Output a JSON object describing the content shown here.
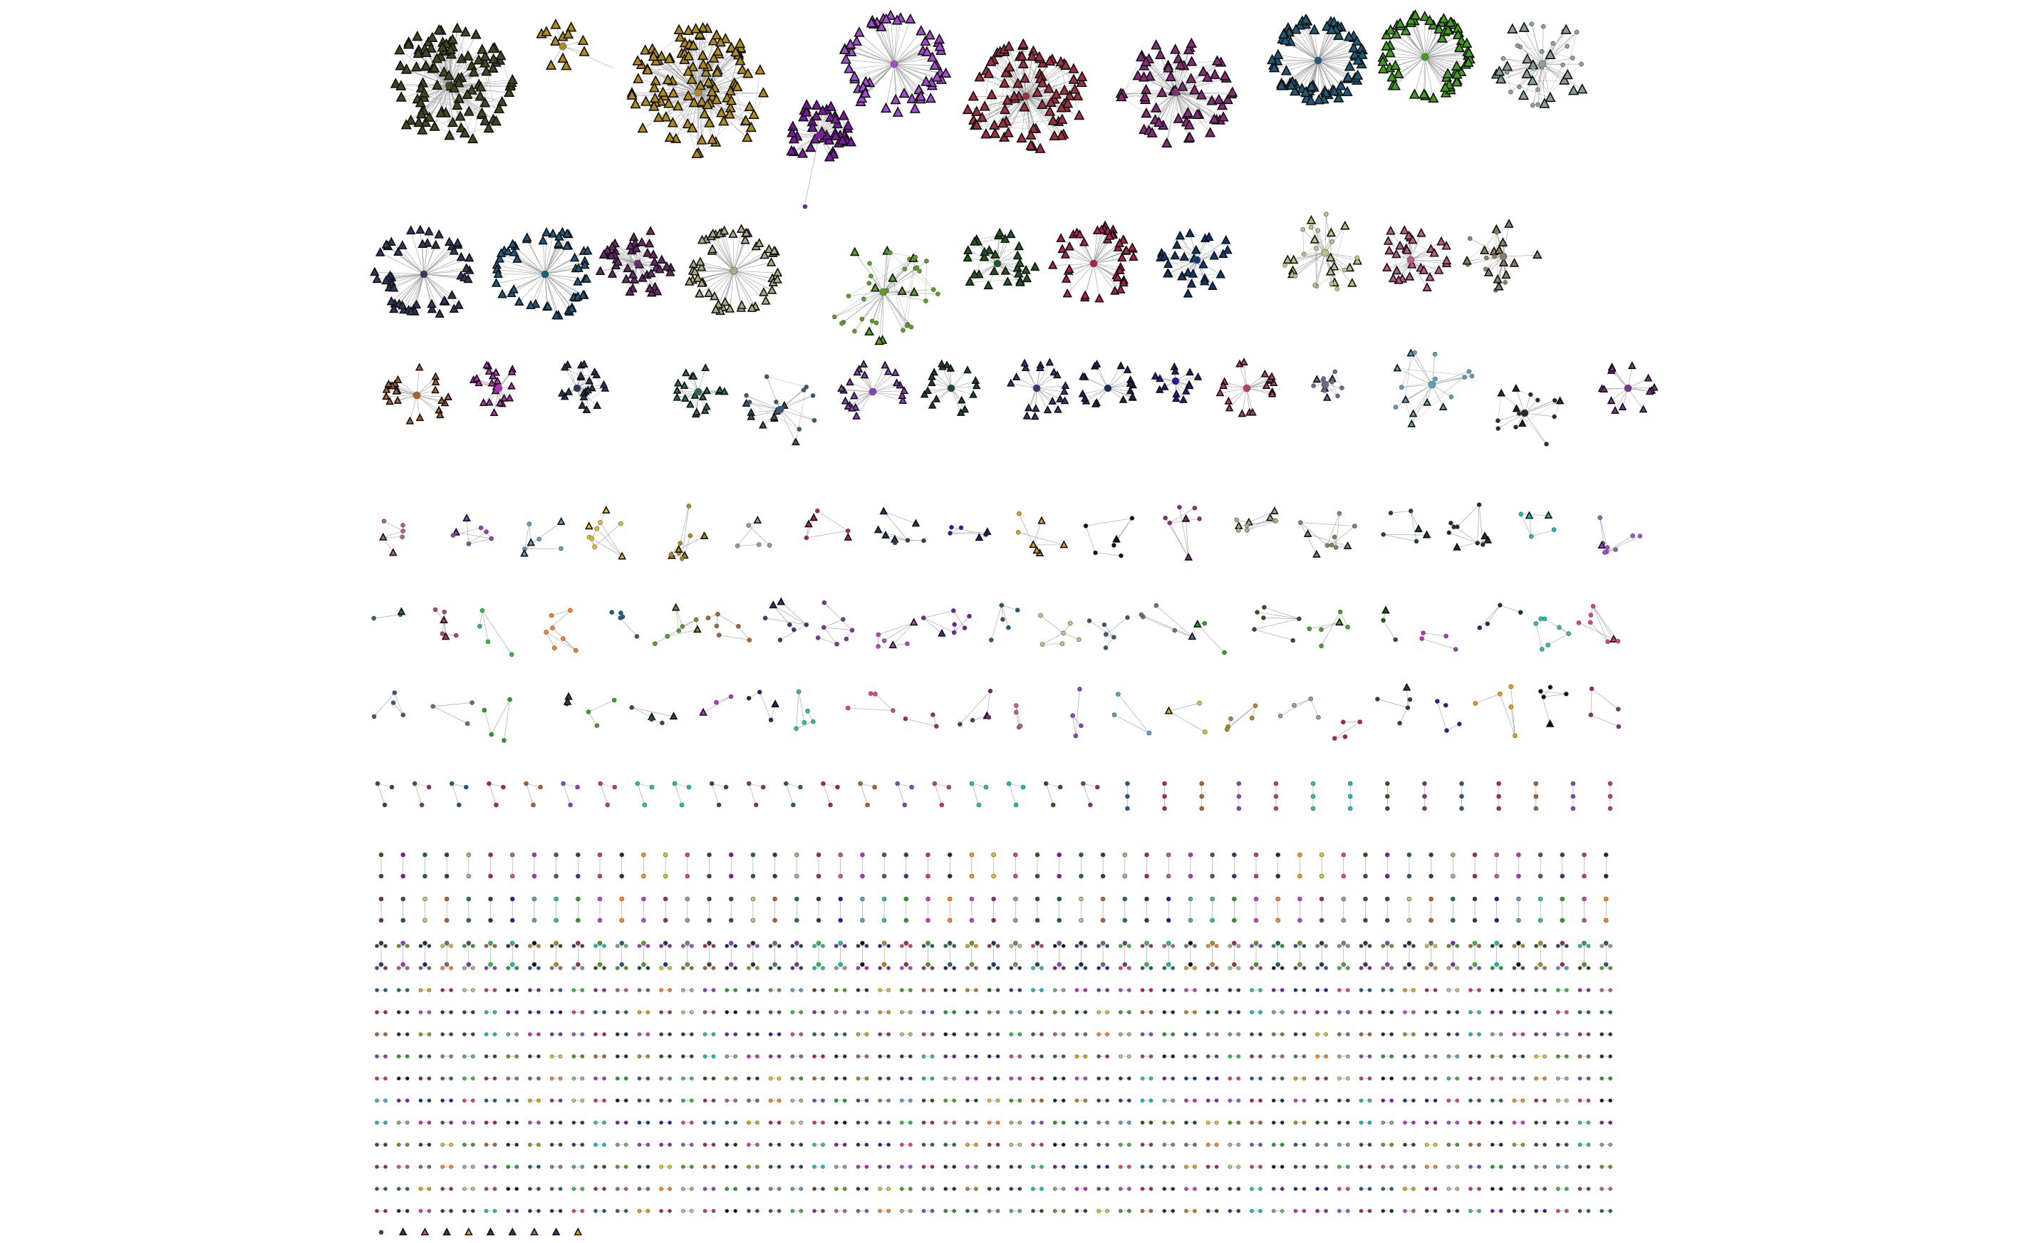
{
  "diagram": {
    "type": "network-components",
    "edge_color": "#9e9e9e",
    "node_outline": "#111111",
    "shapes": {
      "hub": "circle",
      "leaf": "triangle",
      "small": "dot"
    },
    "palette": [
      "#3d4a1e",
      "#b08a1a",
      "#a24ccf",
      "#7a1aa0",
      "#a03040",
      "#8a2a7a",
      "#1f5a7a",
      "#3fa01f",
      "#8aa09a",
      "#30395e",
      "#1e5a86",
      "#6a2a6a",
      "#b0ab80",
      "#5aa01f",
      "#1f5a1f",
      "#b0204a",
      "#0e3a7a",
      "#c0c080",
      "#c05a8a",
      "#8a8060",
      "#b0602a",
      "#c02ac0",
      "#2a3a5a",
      "#2a6a5a",
      "#3a5a7a",
      "#8a40c0",
      "#1a4a2a",
      "#303a7a",
      "#1a2a5a",
      "#2a1a9a",
      "#c03a6a",
      "#6a6a8a",
      "#5aa0c0",
      "#2a2a2a",
      "#80309a",
      "#2ac0a0",
      "#e0a010",
      "#30c040",
      "#20a020",
      "#e0c020",
      "#10c0c0",
      "#c040c0",
      "#e04080",
      "#101010",
      "#ff8020"
    ]
  },
  "components": {
    "row1": [
      {
        "hub": 0,
        "leaves": 110,
        "style": "dense"
      },
      {
        "hub": 1,
        "leaves": 12,
        "style": "small"
      },
      {
        "hub": 1,
        "leaves": 120,
        "style": "dense"
      },
      {
        "hub": 2,
        "leaves": 60,
        "style": "ring"
      },
      {
        "hub": 3,
        "leaves": 45,
        "style": "dense"
      },
      {
        "hub": 4,
        "leaves": 90,
        "style": "dense"
      },
      {
        "hub": 5,
        "leaves": 70,
        "style": "dense"
      },
      {
        "hub": 6,
        "leaves": 80,
        "style": "ring"
      },
      {
        "hub": 7,
        "leaves": 70,
        "style": "ring"
      },
      {
        "hub": 8,
        "leaves": 40,
        "style": "mesh"
      }
    ],
    "row2": [
      {
        "hub": 9,
        "leaves": 55,
        "style": "ring"
      },
      {
        "hub": 10,
        "leaves": 55,
        "style": "ring"
      },
      {
        "hub": 11,
        "leaves": 45,
        "style": "dense"
      },
      {
        "hub": 12,
        "leaves": 55,
        "style": "ring"
      },
      {
        "hub": 13,
        "leaves": 40,
        "style": "mesh"
      },
      {
        "hub": 14,
        "leaves": 30,
        "style": "dense"
      },
      {
        "hub": 15,
        "leaves": 45,
        "style": "ring"
      },
      {
        "hub": 16,
        "leaves": 30,
        "style": "dense"
      },
      {
        "hub": 17,
        "leaves": 30,
        "style": "mesh"
      },
      {
        "hub": 18,
        "leaves": 30,
        "style": "dense"
      },
      {
        "hub": 19,
        "leaves": 25,
        "style": "mesh"
      }
    ],
    "row3": [
      {
        "hub": 20,
        "leaves": 22,
        "style": "ring"
      },
      {
        "hub": 21,
        "leaves": 22,
        "style": "dense"
      },
      {
        "hub": 22,
        "leaves": 22,
        "style": "dense"
      },
      {
        "hub": 23,
        "leaves": 20,
        "style": "dense"
      },
      {
        "hub": 24,
        "leaves": 18,
        "style": "mesh"
      },
      {
        "hub": 25,
        "leaves": 22,
        "style": "ring"
      },
      {
        "hub": 26,
        "leaves": 18,
        "style": "ring"
      },
      {
        "hub": 27,
        "leaves": 20,
        "style": "ring"
      },
      {
        "hub": 28,
        "leaves": 18,
        "style": "ring"
      },
      {
        "hub": 29,
        "leaves": 14,
        "style": "dense"
      },
      {
        "hub": 30,
        "leaves": 18,
        "style": "ring"
      },
      {
        "hub": 31,
        "leaves": 12,
        "style": "mesh"
      },
      {
        "hub": 32,
        "leaves": 16,
        "style": "mesh"
      },
      {
        "hub": 33,
        "leaves": 14,
        "style": "mesh"
      },
      {
        "hub": 34,
        "leaves": 14,
        "style": "ring"
      }
    ],
    "row4_count": 18,
    "row5_count": 23,
    "row6_count": 24,
    "row7_count": 34,
    "pair_rows": 3,
    "pair_cols": 57,
    "chain_rows": 13,
    "chain_cols": 57,
    "tail_count": 10
  }
}
